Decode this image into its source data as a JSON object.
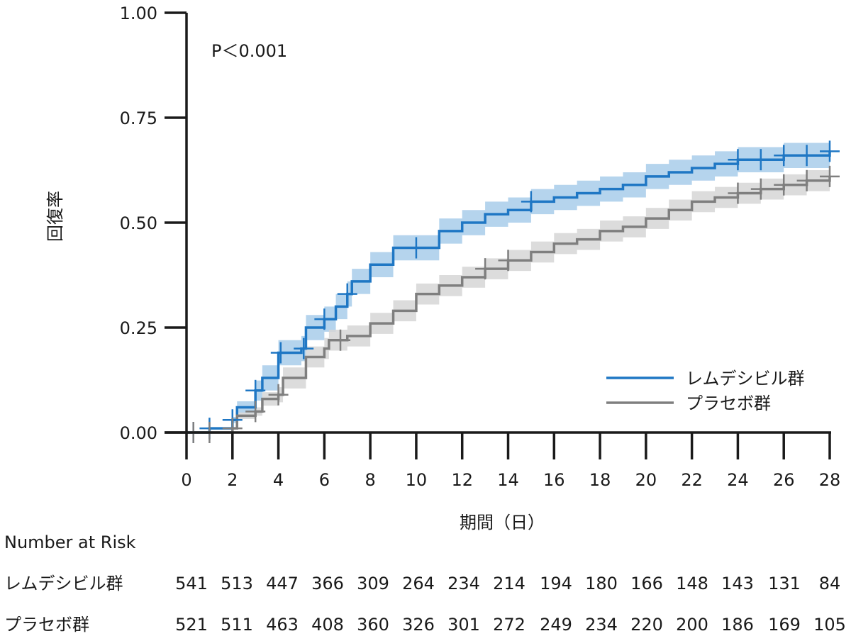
{
  "chart_data": {
    "type": "line",
    "annotation": "P＜0.001",
    "xlabel": "期間（日）",
    "ylabel": "回復率",
    "xlim": [
      0,
      28
    ],
    "ylim": [
      0,
      1
    ],
    "x_ticks": [
      0,
      2,
      4,
      6,
      8,
      10,
      12,
      14,
      16,
      18,
      20,
      22,
      24,
      26,
      28
    ],
    "y_ticks": [
      "0.00",
      "0.25",
      "0.50",
      "0.75",
      "1.00"
    ],
    "legend_position": "bottom-right",
    "grid": false,
    "series": [
      {
        "name": "レムデシビル群",
        "color": "#1f77c4",
        "band_color": "#a8cdea",
        "steps": [
          [
            0,
            0.0
          ],
          [
            1,
            0.01
          ],
          [
            2,
            0.03
          ],
          [
            2.2,
            0.06
          ],
          [
            3,
            0.1
          ],
          [
            3.3,
            0.13
          ],
          [
            4,
            0.19
          ],
          [
            5,
            0.2
          ],
          [
            5.2,
            0.25
          ],
          [
            6,
            0.27
          ],
          [
            6.5,
            0.3
          ],
          [
            7,
            0.33
          ],
          [
            7.2,
            0.36
          ],
          [
            8,
            0.4
          ],
          [
            9,
            0.44
          ],
          [
            10,
            0.44
          ],
          [
            11,
            0.48
          ],
          [
            12,
            0.5
          ],
          [
            13,
            0.52
          ],
          [
            14,
            0.53
          ],
          [
            15,
            0.55
          ],
          [
            16,
            0.56
          ],
          [
            17,
            0.57
          ],
          [
            18,
            0.58
          ],
          [
            19,
            0.59
          ],
          [
            20,
            0.61
          ],
          [
            21,
            0.62
          ],
          [
            22,
            0.63
          ],
          [
            23,
            0.64
          ],
          [
            24,
            0.65
          ],
          [
            25,
            0.65
          ],
          [
            26,
            0.66
          ],
          [
            27,
            0.66
          ],
          [
            28,
            0.67
          ]
        ],
        "band_halfwidth": 0.03,
        "censor_x": [
          0.3,
          1,
          2,
          3,
          4.1,
          5.1,
          6,
          7,
          10,
          15,
          24,
          25,
          26,
          27,
          28
        ]
      },
      {
        "name": "プラセボ群",
        "color": "#7f7f7f",
        "band_color": "#d6d6d6",
        "steps": [
          [
            0,
            0.0
          ],
          [
            1,
            0.0
          ],
          [
            2,
            0.01
          ],
          [
            2.2,
            0.04
          ],
          [
            3,
            0.05
          ],
          [
            3.3,
            0.08
          ],
          [
            4,
            0.09
          ],
          [
            4.2,
            0.13
          ],
          [
            5,
            0.13
          ],
          [
            5.2,
            0.18
          ],
          [
            6,
            0.2
          ],
          [
            6.2,
            0.22
          ],
          [
            7,
            0.23
          ],
          [
            8,
            0.26
          ],
          [
            9,
            0.29
          ],
          [
            10,
            0.33
          ],
          [
            11,
            0.35
          ],
          [
            12,
            0.37
          ],
          [
            13,
            0.39
          ],
          [
            14,
            0.41
          ],
          [
            15,
            0.43
          ],
          [
            16,
            0.45
          ],
          [
            17,
            0.46
          ],
          [
            18,
            0.48
          ],
          [
            19,
            0.49
          ],
          [
            20,
            0.51
          ],
          [
            21,
            0.53
          ],
          [
            22,
            0.55
          ],
          [
            23,
            0.56
          ],
          [
            24,
            0.57
          ],
          [
            25,
            0.58
          ],
          [
            26,
            0.59
          ],
          [
            27,
            0.6
          ],
          [
            28,
            0.61
          ]
        ],
        "band_halfwidth": 0.025,
        "censor_x": [
          0.3,
          1,
          2,
          3,
          4,
          6.7,
          13,
          14,
          24,
          25,
          26,
          27,
          28
        ]
      }
    ],
    "number_at_risk": {
      "title": "Number at Risk",
      "rows": [
        {
          "label": "レムデシビル群",
          "values": [
            "541",
            "513",
            "447",
            "366",
            "309",
            "264",
            "234",
            "214",
            "194",
            "180",
            "166",
            "148",
            "143",
            "131",
            "84"
          ]
        },
        {
          "label": "プラセボ群",
          "values": [
            "521",
            "511",
            "463",
            "408",
            "360",
            "326",
            "301",
            "272",
            "249",
            "234",
            "220",
            "200",
            "186",
            "169",
            "105"
          ]
        }
      ]
    }
  }
}
